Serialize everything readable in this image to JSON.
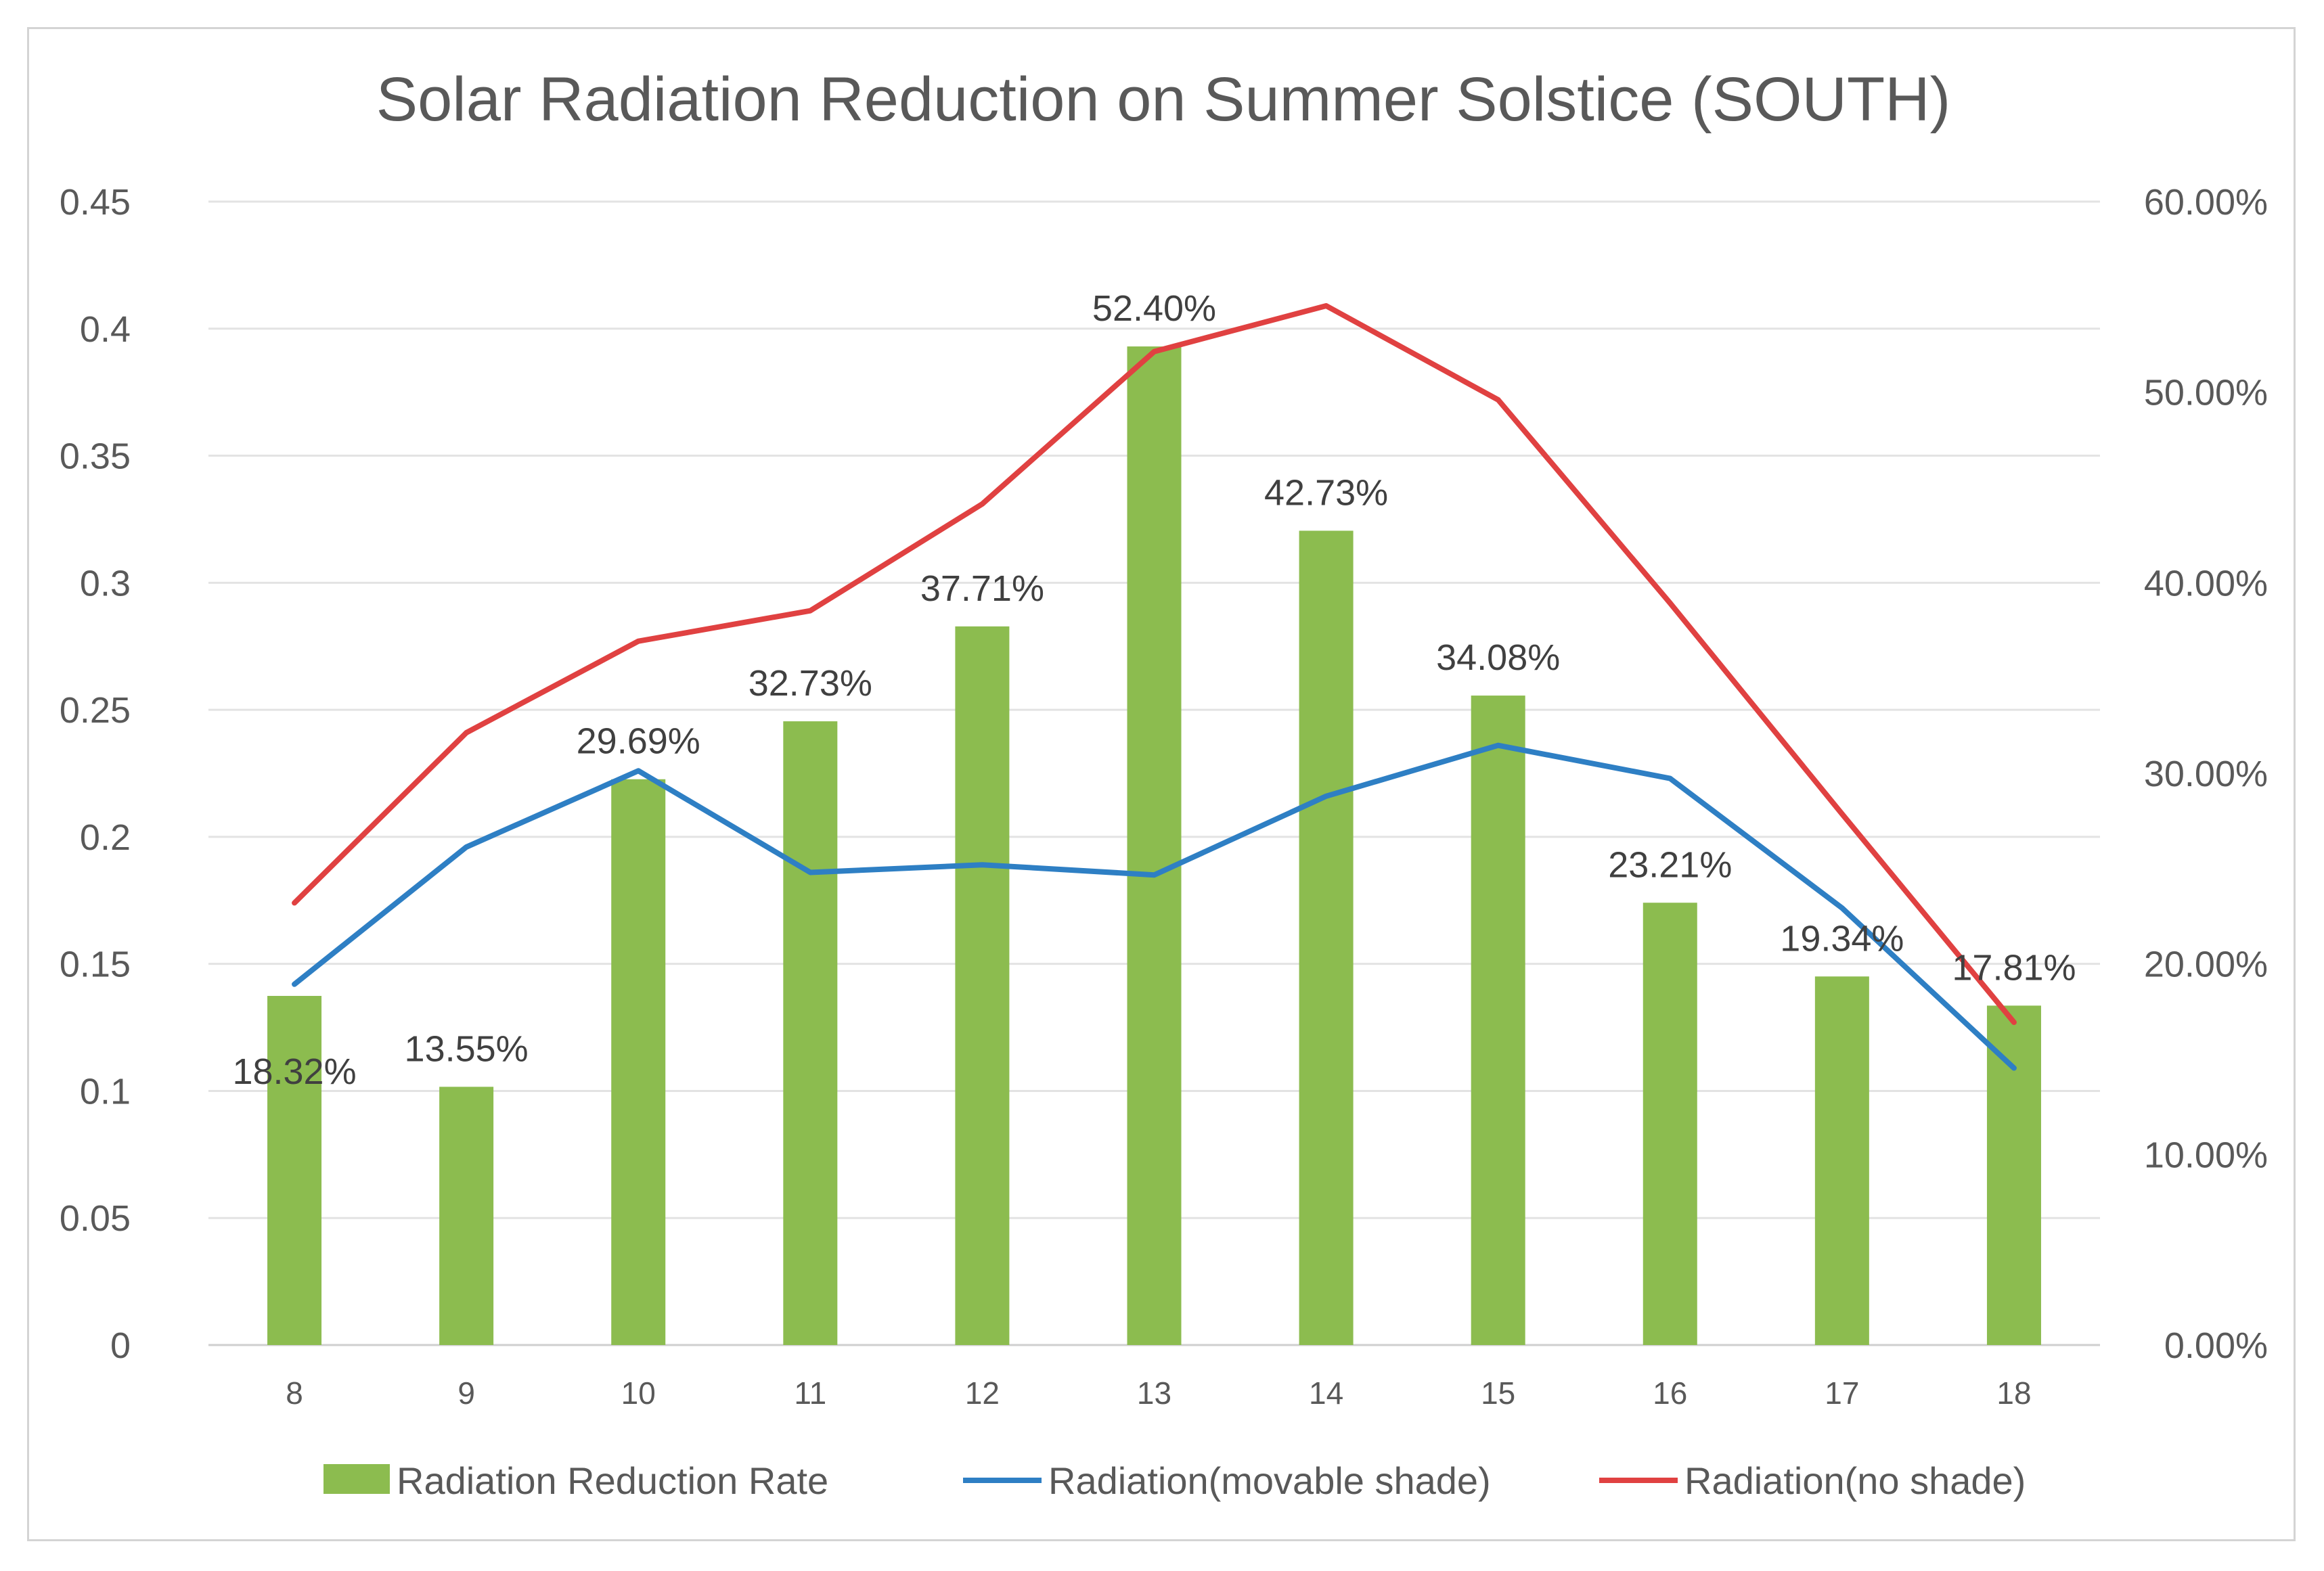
{
  "chart_data": {
    "type": "bar+line",
    "title": "Solar Radiation Reduction on Summer Solstice (SOUTH)",
    "categories": [
      "8",
      "9",
      "10",
      "11",
      "12",
      "13",
      "14",
      "15",
      "16",
      "17",
      "18"
    ],
    "left_axis": {
      "ylim": [
        0,
        0.45
      ],
      "ticks": [
        "0",
        "0.05",
        "0.1",
        "0.15",
        "0.2",
        "0.25",
        "0.3",
        "0.35",
        "0.4",
        "0.45"
      ]
    },
    "right_axis": {
      "ylim": [
        0,
        60
      ],
      "ticks": [
        "0.00%",
        "10.00%",
        "20.00%",
        "30.00%",
        "40.00%",
        "50.00%",
        "60.00%"
      ]
    },
    "series": [
      {
        "name": "Radiation Reduction Rate",
        "type": "bar",
        "axis": "right",
        "color": "#8cbc4f",
        "values": [
          18.32,
          13.55,
          29.69,
          32.73,
          37.71,
          52.4,
          42.73,
          34.08,
          23.21,
          19.34,
          17.81
        ],
        "labels": [
          "18.32%",
          "13.55%",
          "29.69%",
          "32.73%",
          "37.71%",
          "52.40%",
          "42.73%",
          "34.08%",
          "23.21%",
          "19.34%",
          "17.81%"
        ]
      },
      {
        "name": "Radiation(movable shade)",
        "type": "line",
        "axis": "left",
        "color": "#2e7fc4",
        "values": [
          0.142,
          0.196,
          0.226,
          0.186,
          0.189,
          0.185,
          0.216,
          0.236,
          0.223,
          0.172,
          0.109
        ]
      },
      {
        "name": "Radiation(no shade)",
        "type": "line",
        "axis": "left",
        "color": "#e04141",
        "values": [
          0.174,
          0.241,
          0.277,
          0.289,
          0.331,
          0.391,
          0.409,
          0.372,
          0.292,
          0.209,
          0.127
        ]
      }
    ],
    "legend_position": "bottom",
    "grid": true
  }
}
